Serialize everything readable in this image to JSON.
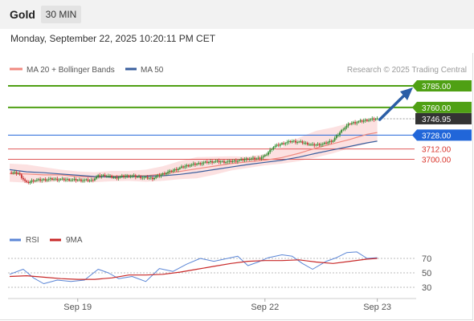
{
  "header": {
    "symbol": "Gold",
    "timeframe": "30 MIN",
    "datetime": "Monday, September 22, 2025 10:20:11 PM CET"
  },
  "credit": "Research © 2025 Trading Central",
  "colors": {
    "resistance": "#4fa014",
    "support": "#2166d9",
    "minor_support": "#e05a5a",
    "ma20": "#f08a80",
    "ma50": "#3a5f9e",
    "bollinger_fill": "#fbdcdc",
    "candle_up": "#2e8b2e",
    "candle_down": "#c83030",
    "current_price_tag": "#333333",
    "arrow": "#2b5ea6",
    "rsi": "#5b86d6",
    "rsi_ma": "#c82828"
  },
  "chart_data": [
    {
      "type": "line",
      "title": "",
      "series": [
        {
          "name": "MA 20 + Bollinger Bands",
          "x": [
            0,
            10,
            20,
            30,
            40,
            50,
            60,
            70,
            80,
            90,
            100,
            110,
            120,
            130,
            140,
            150,
            160,
            170,
            180,
            190,
            200,
            210,
            216
          ],
          "values": [
            3683.5,
            3683.0,
            3682.0,
            3682.0,
            3680.0,
            3679.5,
            3680.5,
            3681.0,
            3681.0,
            3683.0,
            3686.0,
            3689.0,
            3692.0,
            3695.0,
            3697.0,
            3699.0,
            3702.0,
            3707.0,
            3713.0,
            3718.0,
            3723.0,
            3729.0,
            3731.0
          ]
        },
        {
          "name": "MA 50",
          "x": [
            0,
            10,
            20,
            30,
            40,
            50,
            60,
            70,
            80,
            90,
            100,
            110,
            120,
            130,
            140,
            150,
            160,
            170,
            180,
            190,
            200,
            210,
            216
          ],
          "values": [
            3688.0,
            3685.5,
            3684.5,
            3683.0,
            3681.5,
            3680.0,
            3679.5,
            3680.0,
            3680.5,
            3681.0,
            3682.5,
            3685.0,
            3688.0,
            3691.0,
            3694.0,
            3696.5,
            3699.0,
            3702.5,
            3707.0,
            3711.0,
            3715.0,
            3719.0,
            3721.0
          ]
        },
        {
          "name": "Bollinger Upper",
          "x": [
            0,
            10,
            20,
            30,
            40,
            50,
            60,
            70,
            80,
            90,
            100,
            110,
            120,
            130,
            140,
            150,
            160,
            170,
            180,
            190,
            200,
            210,
            216
          ],
          "values": [
            3695.0,
            3694.0,
            3691.0,
            3688.0,
            3686.0,
            3685.0,
            3686.5,
            3686.5,
            3688.0,
            3692.0,
            3698.0,
            3702.5,
            3703.0,
            3703.5,
            3703.0,
            3706.0,
            3714.0,
            3725.0,
            3733.0,
            3737.0,
            3742.0,
            3747.0,
            3748.0
          ]
        },
        {
          "name": "Bollinger Lower",
          "x": [
            0,
            10,
            20,
            30,
            40,
            50,
            60,
            70,
            80,
            90,
            100,
            110,
            120,
            130,
            140,
            150,
            160,
            170,
            180,
            190,
            200,
            210,
            216
          ],
          "values": [
            3674.0,
            3673.0,
            3673.0,
            3675.0,
            3673.5,
            3673.5,
            3674.5,
            3675.0,
            3674.0,
            3675.0,
            3677.0,
            3678.0,
            3682.0,
            3687.0,
            3690.0,
            3693.0,
            3695.0,
            3698.0,
            3702.0,
            3707.0,
            3713.0,
            3718.0,
            3721.0
          ]
        },
        {
          "name": "Price",
          "x": [
            0,
            5,
            10,
            14,
            18,
            25,
            32,
            40,
            48,
            52,
            56,
            62,
            68,
            72,
            78,
            84,
            90,
            96,
            100,
            104,
            108,
            114,
            120,
            128,
            134,
            140,
            146,
            150,
            155,
            160,
            166,
            172,
            178,
            184,
            190,
            196,
            200,
            205,
            210,
            216
          ],
          "values": [
            3684.5,
            3684.0,
            3672.5,
            3675.5,
            3676.0,
            3677.0,
            3676.5,
            3676.0,
            3675.5,
            3680.5,
            3681.5,
            3678.5,
            3680.5,
            3680.5,
            3679.0,
            3678.0,
            3683.0,
            3687.0,
            3690.0,
            3692.5,
            3694.0,
            3696.0,
            3697.5,
            3697.0,
            3698.5,
            3700.5,
            3701.0,
            3704.0,
            3714.5,
            3718.0,
            3721.0,
            3719.5,
            3716.5,
            3717.5,
            3722.0,
            3735.5,
            3741.5,
            3743.5,
            3745.5,
            3746.95
          ]
        }
      ],
      "levels": [
        {
          "label": "3785.00",
          "value": 3785.0,
          "kind": "resistance"
        },
        {
          "label": "3760.00",
          "value": 3760.0,
          "kind": "resistance"
        },
        {
          "label": "3746.95",
          "value": 3746.95,
          "kind": "current"
        },
        {
          "label": "3728.00",
          "value": 3728.0,
          "kind": "support"
        },
        {
          "label": "3712.00",
          "value": 3712.0,
          "kind": "minor"
        },
        {
          "label": "3700.00",
          "value": 3700.0,
          "kind": "minor"
        }
      ],
      "xaxis_labels": [
        "Sep 19",
        "Sep 22",
        "Sep 23"
      ],
      "xaxis_label_positions": [
        40,
        150,
        216
      ],
      "ylim": [
        3662,
        3792
      ],
      "xlim": [
        0,
        236
      ],
      "legend": [
        "MA 20 + Bollinger Bands",
        "MA 50"
      ],
      "grid": false,
      "legend_position": "top-left"
    },
    {
      "type": "line",
      "title": "",
      "series": [
        {
          "name": "RSI",
          "x": [
            0,
            8,
            14,
            20,
            28,
            36,
            44,
            52,
            58,
            64,
            72,
            80,
            88,
            96,
            104,
            112,
            120,
            128,
            134,
            140,
            146,
            152,
            160,
            166,
            172,
            178,
            186,
            192,
            198,
            204,
            210,
            216
          ],
          "values": [
            48,
            55,
            43,
            35,
            40,
            38,
            40,
            55,
            50,
            42,
            45,
            38,
            56,
            52,
            62,
            70,
            66,
            70,
            73,
            60,
            65,
            71,
            75,
            73,
            63,
            55,
            66,
            71,
            78,
            79,
            70,
            71
          ]
        },
        {
          "name": "9MA",
          "x": [
            0,
            10,
            20,
            30,
            40,
            50,
            60,
            70,
            80,
            90,
            100,
            110,
            120,
            130,
            140,
            150,
            160,
            170,
            180,
            190,
            200,
            210,
            216
          ],
          "values": [
            45,
            46,
            44,
            42,
            41,
            41,
            43,
            47,
            47,
            48,
            51,
            55,
            59,
            63,
            66,
            67,
            67,
            68,
            65,
            63,
            66,
            69,
            70
          ]
        }
      ],
      "levels": [
        70,
        50,
        30
      ],
      "ylim": [
        10,
        85
      ],
      "legend": [
        "RSI",
        "9MA"
      ],
      "legend_position": "top-left"
    }
  ]
}
